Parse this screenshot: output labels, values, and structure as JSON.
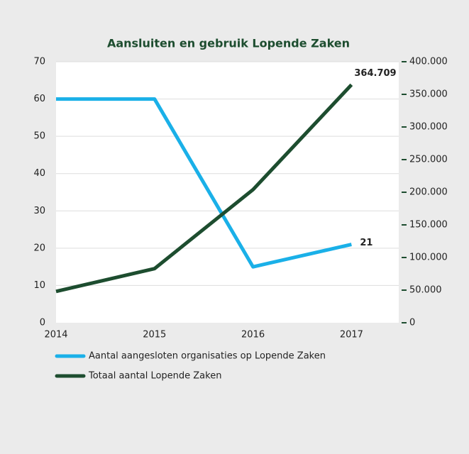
{
  "chart_data": {
    "type": "line",
    "title": "Aansluiten en gebruik Lopende Zaken",
    "x": [
      2014,
      2015,
      2016,
      2017
    ],
    "xlim": [
      2014,
      2017.48
    ],
    "xticks": [
      2014,
      2015,
      2016,
      2017
    ],
    "ylim": [
      0,
      70
    ],
    "yticks": [
      0,
      10,
      20,
      30,
      40,
      50,
      60,
      70
    ],
    "y2lim": [
      0,
      400000
    ],
    "y2ticks": [
      0,
      {
        "value": 50000,
        "label": "50.000"
      },
      {
        "value": 100000,
        "label": "100.000"
      },
      {
        "value": 150000,
        "label": "150.000"
      },
      {
        "value": 200000,
        "label": "200.000"
      },
      {
        "value": 250000,
        "label": "250.000"
      },
      {
        "value": 300000,
        "label": "300.000"
      },
      {
        "value": 350000,
        "label": "350.000"
      },
      {
        "value": 400000,
        "label": "400.000"
      }
    ],
    "grid": true,
    "series": [
      {
        "name": "Aantal aangesloten organisaties op Lopende Zaken",
        "color": "#1ab0e8",
        "values": [
          60,
          60,
          15,
          21
        ]
      },
      {
        "name": "Totaal aantal Lopende Zaken",
        "color": "#1d4d2f",
        "axis": "y2",
        "values": [
          48000,
          83000,
          204000,
          364709
        ],
        "value_labels": [
          null,
          null,
          null,
          "364.709"
        ]
      }
    ]
  }
}
